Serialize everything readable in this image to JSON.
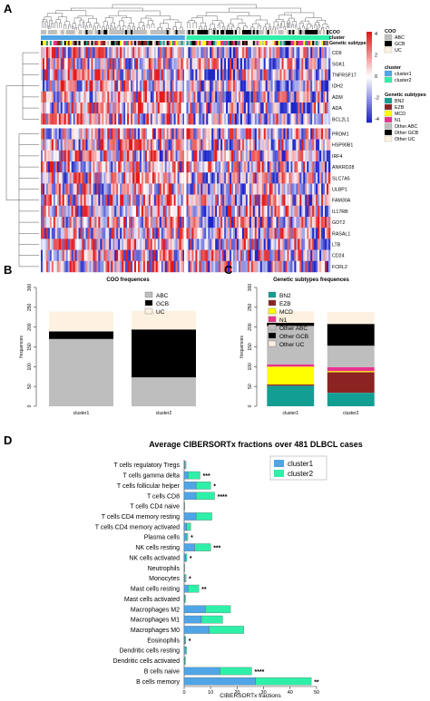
{
  "panel_letters": {
    "a": "A",
    "b": "B",
    "c": "C",
    "d": "D"
  },
  "colors": {
    "heat_high": "#e31a1c",
    "heat_mid": "#ffffff",
    "heat_low": "#1f26c7",
    "abc": "#bebebe",
    "gcb": "#000000",
    "uc": "#fdf1e1",
    "cluster1": "#4fa5e6",
    "cluster2": "#2ef0a8",
    "bn2": "#139e93",
    "ezb": "#8b2323",
    "mcd": "#ffff00",
    "n1": "#e8338f",
    "other_abc": "#bebebe",
    "other_gcb": "#000000",
    "other_uc": "#fdf1e1"
  },
  "chart_data": [
    {
      "type": "heatmap",
      "rows": [
        "CD9",
        "SGK1",
        "TNFRSF17",
        "IDH2",
        "ADM",
        "ADA",
        "BCL2L1",
        "PRDM1",
        "HSP90B1",
        "IRF4",
        "ANKRD28",
        "SLC7A5",
        "ULBP1",
        "FAM30A",
        "IL17RB",
        "GOT2",
        "RASAL1",
        "LTB",
        "CD24",
        "FCRL2"
      ],
      "annotation_rows": [
        "COO",
        "cluster",
        "Genetic subtypes"
      ],
      "colorbar_ticks": [
        "4",
        "2",
        "0",
        "-2",
        "-4"
      ],
      "legend": {
        "coo": {
          "title": "COO",
          "items": [
            "ABC",
            "GCB",
            "UC"
          ]
        },
        "cluster": {
          "title": "cluster",
          "items": [
            "cluster1",
            "cluster2"
          ]
        },
        "genetic": {
          "title": "Genetic subtypes",
          "items": [
            "BN2",
            "EZB",
            "MCD",
            "N1",
            "Other ABC",
            "Other GCB",
            "Other UC"
          ]
        }
      }
    },
    {
      "type": "bar",
      "stacked": true,
      "title": "COO frequences",
      "ylabel": "frequences",
      "ylim": [
        0,
        300
      ],
      "yticks": [
        "0",
        "50",
        "100",
        "150",
        "200",
        "250",
        "300"
      ],
      "categories": [
        "cluster1",
        "cluster2"
      ],
      "series": [
        {
          "name": "ABC",
          "values": [
            170,
            73
          ]
        },
        {
          "name": "GCB",
          "values": [
            19,
            121
          ]
        },
        {
          "name": "UC",
          "values": [
            50,
            47
          ]
        }
      ],
      "legend_position": "top-right"
    },
    {
      "type": "bar",
      "stacked": true,
      "title": "Genetic subtypes frequences",
      "ylabel": "frequences",
      "ylim": [
        0,
        300
      ],
      "yticks": [
        "0",
        "50",
        "100",
        "150",
        "200",
        "250",
        "300"
      ],
      "categories": [
        "cluster1",
        "cluster2"
      ],
      "series": [
        {
          "name": "BN2",
          "values": [
            52,
            34
          ]
        },
        {
          "name": "EZB",
          "values": [
            3,
            52
          ]
        },
        {
          "name": "MCD",
          "values": [
            45,
            3
          ]
        },
        {
          "name": "N1",
          "values": [
            6,
            10
          ]
        },
        {
          "name": "Other ABC",
          "values": [
            97,
            54
          ]
        },
        {
          "name": "Other GCB",
          "values": [
            8,
            55
          ]
        },
        {
          "name": "Other UC",
          "values": [
            29,
            30
          ]
        }
      ],
      "legend_position": "top-left"
    },
    {
      "type": "bar",
      "orientation": "horizontal",
      "stacked": true,
      "title": "Average CIBERSORTx fractions over 481 DLBCL cases",
      "xlabel": "CIBERSORTx fractions",
      "xlim": [
        0,
        50
      ],
      "xticks": [
        "0",
        "10",
        "20",
        "30",
        "40",
        "50"
      ],
      "categories": [
        "T cells regulatory  Tregs",
        "T cells gamma delta",
        "T cells follicular helper",
        "T cells CD8",
        "T cells CD4 naive",
        "T cells CD4 memory resting",
        "T cells CD4 memory activated",
        "Plasma cells",
        "NK cells resting",
        "NK cells activated",
        "Neutrophils",
        "Monocytes",
        "Mast cells resting",
        "Mast cells activated",
        "Macrophages M2",
        "Macrophages M1",
        "Macrophages M0",
        "Eosinophils",
        "Dendritic cells resting",
        "Dendritic cells activated",
        "B cells naive",
        "B cells memory"
      ],
      "series": [
        {
          "name": "cluster1",
          "values": [
            0.3,
            1.5,
            4.5,
            4.5,
            0.1,
            4.5,
            1.0,
            0.8,
            4.0,
            0.6,
            0.1,
            0.3,
            1.5,
            0.2,
            8.0,
            6.5,
            9.5,
            0.3,
            0.4,
            0.2,
            13.5,
            27.0
          ]
        },
        {
          "name": "cluster2",
          "values": [
            0.4,
            4.5,
            5.5,
            7.0,
            0.1,
            6.0,
            1.5,
            0.6,
            6.0,
            0.4,
            0.1,
            0.4,
            4.0,
            0.3,
            9.5,
            8.0,
            13.0,
            0.3,
            0.5,
            0.3,
            12.0,
            21.0
          ]
        }
      ],
      "significance": [
        "",
        "***",
        "*",
        "****",
        "",
        "",
        "",
        "*",
        "***",
        "*",
        "",
        "*",
        "**",
        "",
        "",
        "",
        "",
        "*",
        "",
        "",
        "****",
        "**"
      ],
      "legend_position": "top-right"
    }
  ]
}
